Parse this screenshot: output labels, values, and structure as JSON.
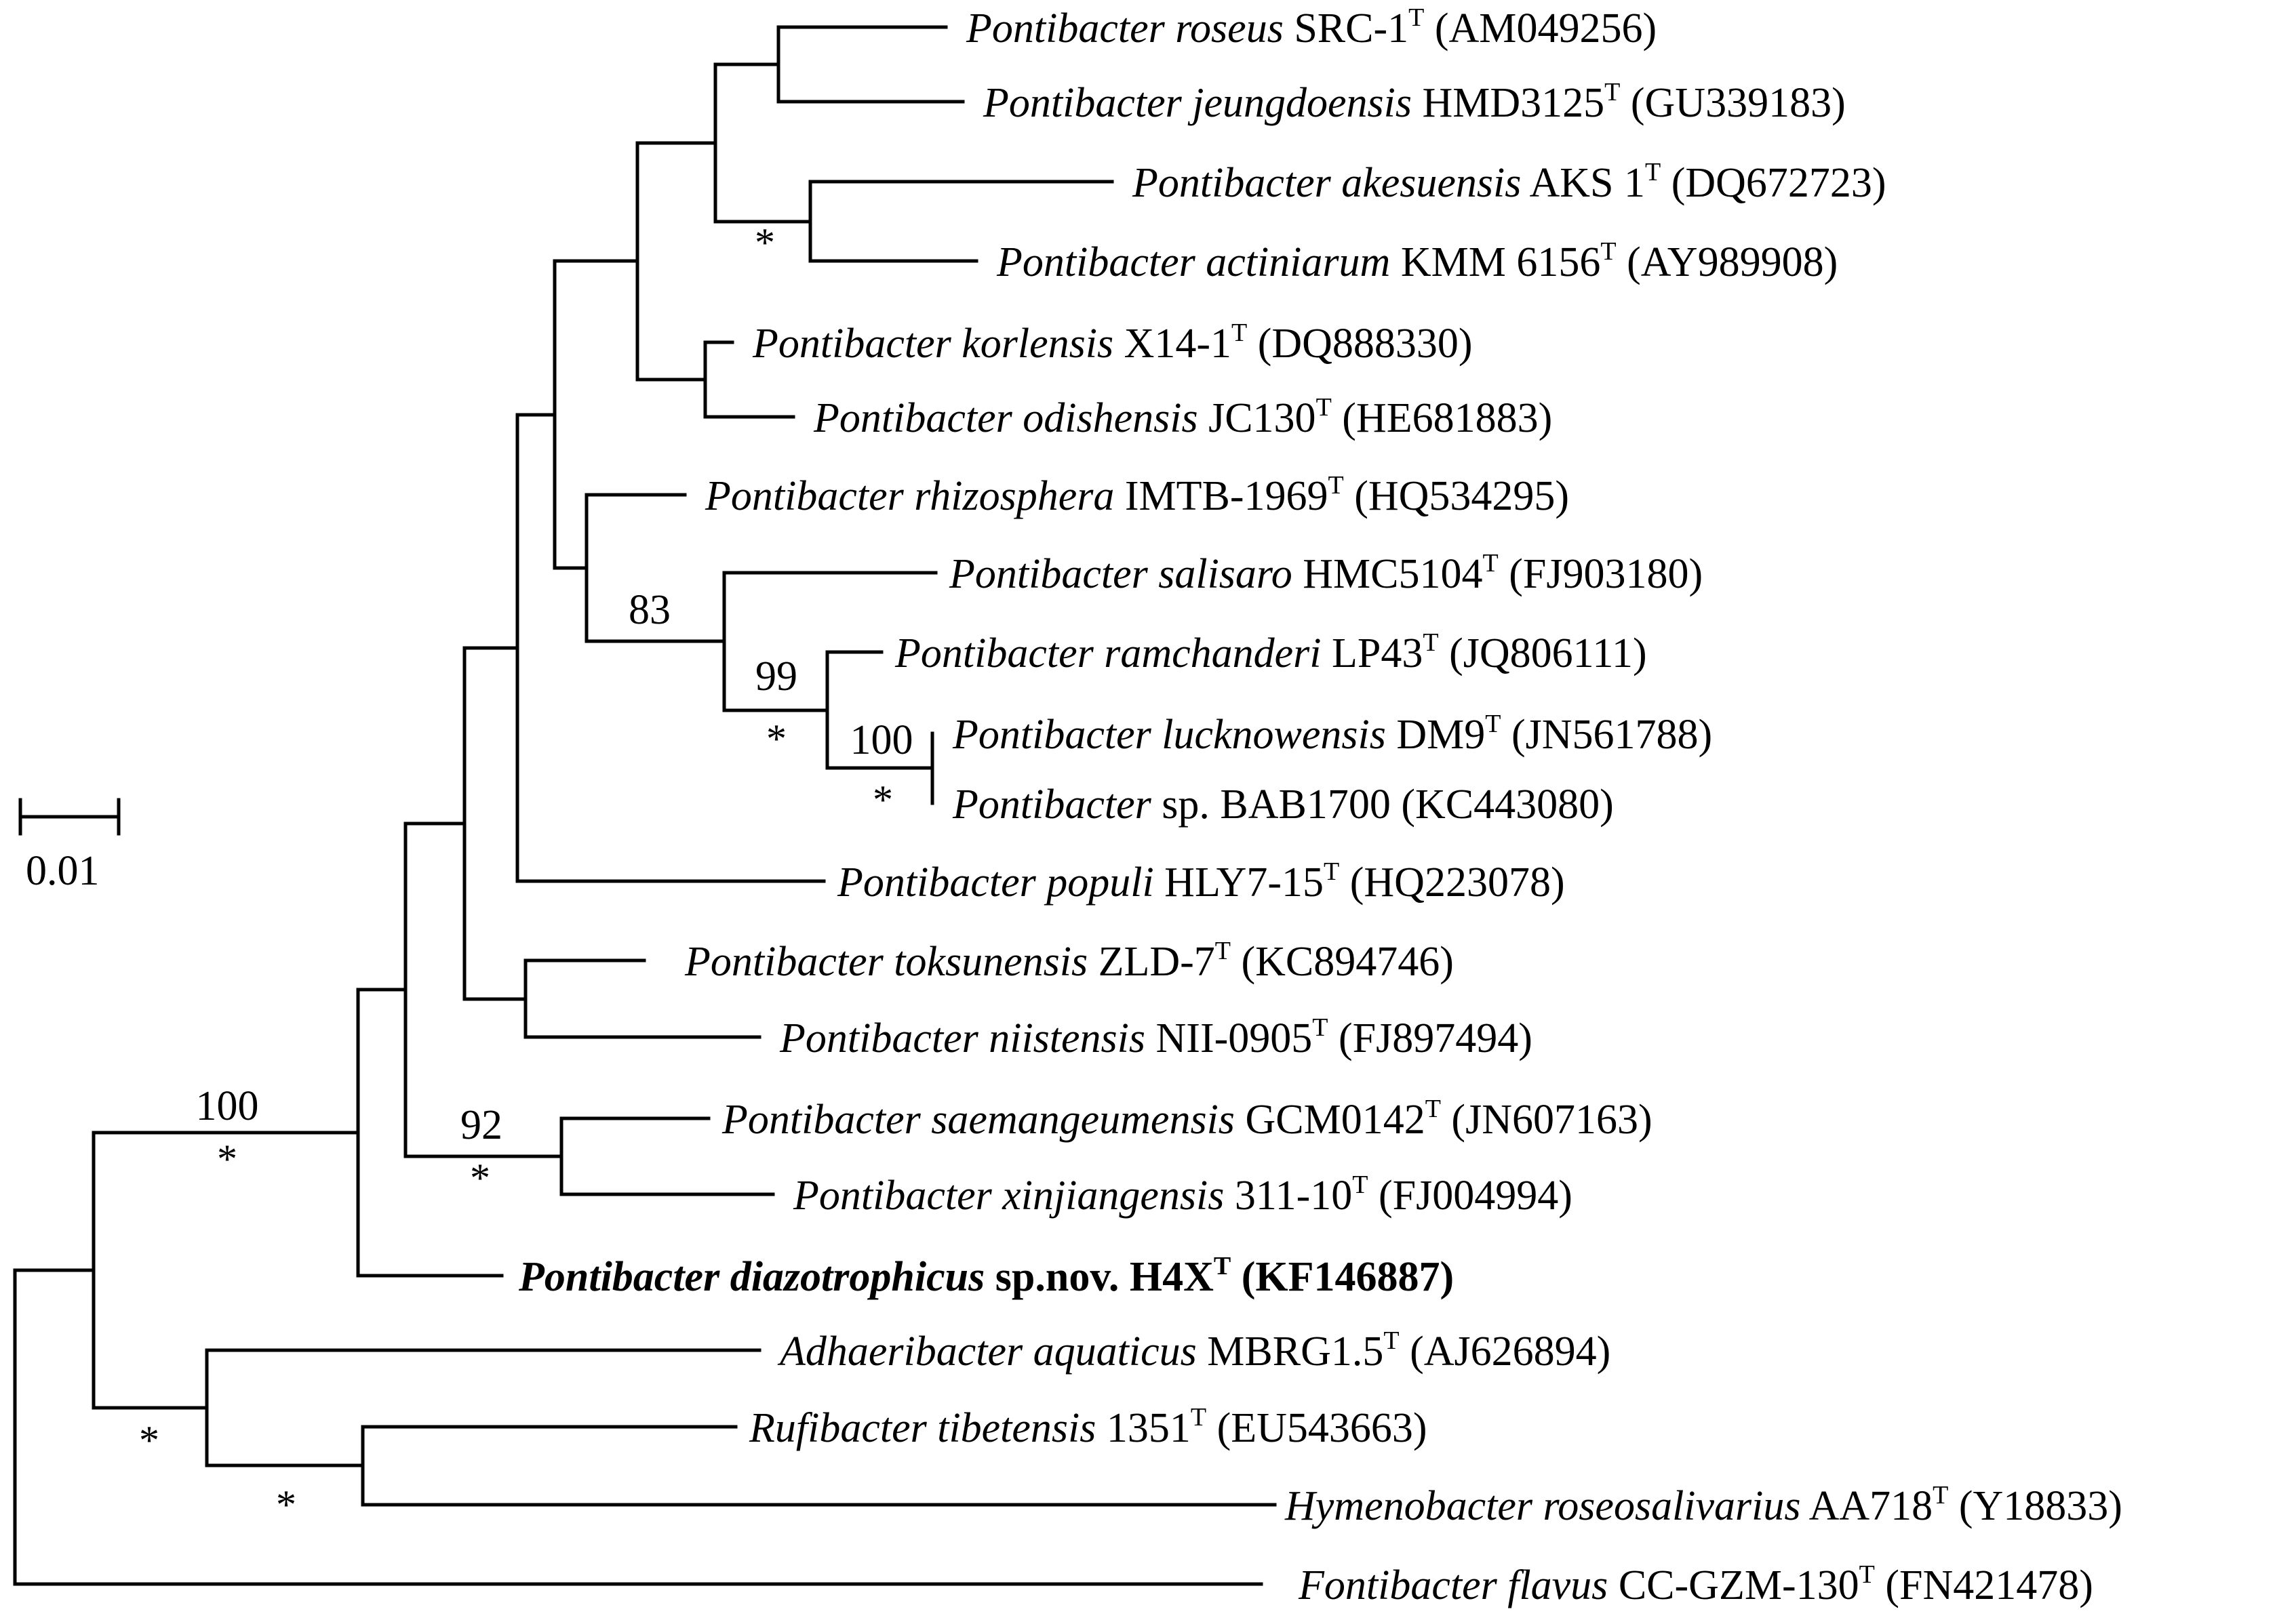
{
  "scale": {
    "label": "0.01"
  },
  "taxa": [
    {
      "genus": "Pontibacter",
      "epithet": "roseus",
      "strain": "SRC-1",
      "type": "T",
      "accession": "(AM049256)"
    },
    {
      "genus": "Pontibacter",
      "epithet": "jeungdoensis",
      "strain": "HMD3125",
      "type": "T",
      "accession": "(GU339183)"
    },
    {
      "genus": "Pontibacter",
      "epithet": "akesuensis",
      "strain": "AKS 1",
      "type": "T",
      "accession": "(DQ672723)"
    },
    {
      "genus": "Pontibacter",
      "epithet": "actiniarum",
      "strain": "KMM 6156",
      "type": "T",
      "accession": "(AY989908)"
    },
    {
      "genus": "Pontibacter",
      "epithet": "korlensis",
      "strain": "X14-1",
      "type": "T",
      "accession": "(DQ888330)"
    },
    {
      "genus": "Pontibacter",
      "epithet": "odishensis",
      "strain": "JC130",
      "type": "T",
      "accession": "(HE681883)"
    },
    {
      "genus": "Pontibacter",
      "epithet": "rhizosphera",
      "strain": "IMTB-1969",
      "type": "T",
      "accession": "(HQ534295)"
    },
    {
      "genus": "Pontibacter",
      "epithet": "salisaro",
      "strain": "HMC5104",
      "type": "T",
      "accession": "(FJ903180)"
    },
    {
      "genus": "Pontibacter",
      "epithet": "ramchanderi",
      "strain": "LP43",
      "type": "T",
      "accession": "(JQ806111)"
    },
    {
      "genus": "Pontibacter",
      "epithet": "lucknowensis",
      "strain": "DM9",
      "type": "T",
      "accession": "(JN561788)"
    },
    {
      "genus": "Pontibacter",
      "epithet": "",
      "strain": "sp. BAB1700",
      "type": "",
      "accession": "(KC443080)"
    },
    {
      "genus": "Pontibacter",
      "epithet": "populi",
      "strain": "HLY7-15",
      "type": "T",
      "accession": "(HQ223078)"
    },
    {
      "genus": "Pontibacter",
      "epithet": "toksunensis",
      "strain": "ZLD-7",
      "type": "T",
      "accession": "(KC894746)"
    },
    {
      "genus": "Pontibacter",
      "epithet": "niistensis",
      "strain": "NII-0905",
      "type": "T",
      "accession": "(FJ897494)"
    },
    {
      "genus": "Pontibacter",
      "epithet": "saemangeumensis",
      "strain": "GCM0142",
      "type": "T",
      "accession": "(JN607163)"
    },
    {
      "genus": "Pontibacter",
      "epithet": "xinjiangensis",
      "strain": "311-10",
      "type": "T",
      "accession": "(FJ004994)"
    },
    {
      "genus": "Pontibacter",
      "epithet": "diazotrophicus",
      "strain": "sp.nov. H4X",
      "type": "T",
      "accession": "(KF146887)",
      "highlight": true
    },
    {
      "genus": "Adhaeribacter",
      "epithet": "aquaticus",
      "strain": "MBRG1.5",
      "type": "T",
      "accession": "(AJ626894)"
    },
    {
      "genus": "Rufibacter",
      "epithet": "tibetensis",
      "strain": "1351",
      "type": "T",
      "accession": "(EU543663)"
    },
    {
      "genus": "Hymenobacter",
      "epithet": "roseosalivarius",
      "strain": "AA718",
      "type": "T",
      "accession": "(Y18833)"
    },
    {
      "genus": "Fontibacter",
      "epithet": "flavus",
      "strain": "CC-GZM-130",
      "type": "T",
      "accession": "(FN421478)"
    }
  ],
  "support_values": [
    "83",
    "99",
    "100",
    "100",
    "92"
  ],
  "support_marks": [
    "*",
    "*",
    "*",
    "*",
    "*",
    "*",
    "*"
  ]
}
